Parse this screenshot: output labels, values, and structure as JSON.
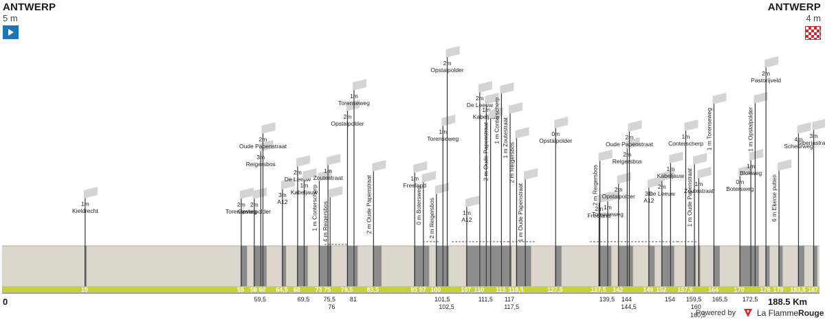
{
  "start": {
    "city": "ANTWERP",
    "altitude": "5 m"
  },
  "finish": {
    "city": "ANTWERP",
    "altitude": "4 m"
  },
  "distance_start_label": "0",
  "distance_end_label": "188.5 Km",
  "footer": {
    "powered_by": "Powered by",
    "brand_prefix": "La Flamme",
    "brand_suffix": "Rouge"
  },
  "colors": {
    "terrain": "#dcd6cc",
    "sector": "#8c8c8c",
    "base_strip": "#c6d13a",
    "marker_card": "#d4d4d4",
    "line": "#333333"
  },
  "chart_data": {
    "type": "area",
    "total_km": 188.5,
    "axis_labels_row1": [
      "19",
      "55",
      "58",
      "60",
      "64,5",
      "68",
      "73",
      "75",
      "79,5",
      "85,5",
      "95",
      "97",
      "100",
      "107",
      "110",
      "115",
      "118,5",
      "127,5",
      "137,5",
      "142",
      "149",
      "152",
      "157,5",
      "164",
      "170",
      "176",
      "179",
      "183,5",
      "187"
    ],
    "axis_labels_row2": [
      "59,5",
      "69,5",
      "75,5",
      "81",
      "101,5",
      "111,5",
      "117",
      "139,5",
      "144",
      "154",
      "159,5",
      "165,5",
      "172,5"
    ],
    "axis_labels_row3": [
      "76",
      "102,5",
      "117,5",
      "144,5",
      "160"
    ],
    "axis_labels_row4": [
      "160,5"
    ],
    "sectors": [
      {
        "km": 19,
        "from": 19,
        "to": 19.5,
        "name": "Kieldrecht",
        "diff": "1m",
        "vertical": false
      },
      {
        "km": 55,
        "from": 55,
        "to": 56.5,
        "name": "Torenseweg",
        "diff": "2m",
        "vertical": false
      },
      {
        "km": 58,
        "from": 58,
        "to": 59.5,
        "name": "Opstalpolder",
        "diff": "2m",
        "vertical": false
      },
      {
        "km": 59.5,
        "from": 59.5,
        "to": 60,
        "name": "Reigersbos",
        "diff": "3m",
        "vertical": false
      },
      {
        "km": 60,
        "from": 60,
        "to": 61,
        "name": "Oude Papenstraat",
        "diff": "2m",
        "vertical": false
      },
      {
        "km": 64.5,
        "from": 64.5,
        "to": 65.5,
        "name": "A12",
        "diff": "3m",
        "vertical": false
      },
      {
        "km": 68,
        "from": 68,
        "to": 69.5,
        "name": "De Leeuw",
        "diff": "2m",
        "vertical": false
      },
      {
        "km": 69.5,
        "from": 69.5,
        "to": 70.5,
        "name": "Kabeljauw",
        "diff": "1m",
        "vertical": false
      },
      {
        "km": 73,
        "from": 73,
        "to": 75,
        "name": "Conterscherp",
        "diff": "1 m",
        "vertical": true
      },
      {
        "km": 75,
        "from": 75,
        "to": 75.5,
        "name": "Zoutestraat",
        "diff": "1m",
        "vertical": false
      },
      {
        "km": 75.5,
        "from": 75.5,
        "to": 76,
        "name": "Reigersbos",
        "diff": "4 m",
        "vertical": true
      },
      {
        "km": 79.5,
        "from": 79.5,
        "to": 81,
        "name": "Opstalpolder",
        "diff": "2m",
        "vertical": false
      },
      {
        "km": 81,
        "from": 81,
        "to": 82,
        "name": "Torenseweg",
        "diff": "1m",
        "vertical": false
      },
      {
        "km": 85.5,
        "from": 85.5,
        "to": 87.5,
        "name": "Oude Papenstraat",
        "diff": "2 m",
        "vertical": true
      },
      {
        "km": 95,
        "from": 95,
        "to": 97,
        "name": "Freeland",
        "diff": "1m",
        "vertical": false
      },
      {
        "km": 97,
        "from": 97,
        "to": 98.5,
        "name": "Botersweg",
        "diff": "0 m",
        "vertical": true
      },
      {
        "km": 100,
        "from": 100,
        "to": 101.5,
        "name": "Reigersbos",
        "diff": "2 m",
        "vertical": true
      },
      {
        "km": 101.5,
        "from": 101.5,
        "to": 102.5,
        "name": "Torenseweg",
        "diff": "1m",
        "vertical": false
      },
      {
        "km": 102.5,
        "from": 102.5,
        "to": 103,
        "name": "Opstalpolder",
        "diff": "2m",
        "vertical": false
      },
      {
        "km": 107,
        "from": 107,
        "to": 110,
        "name": "A12",
        "diff": "1m",
        "vertical": false
      },
      {
        "km": 110,
        "from": 110,
        "to": 111.5,
        "name": "De Leeuw",
        "diff": "2m",
        "vertical": false
      },
      {
        "km": 111.5,
        "from": 111.5,
        "to": 112.5,
        "name": "Kabeljauw",
        "diff": "1m",
        "vertical": false
      },
      {
        "km": 112.5,
        "from": 112.5,
        "to": 115,
        "name": "Oude Papenstraat",
        "diff": "2 m",
        "vertical": true
      },
      {
        "km": 115,
        "from": 115,
        "to": 117,
        "name": "Conterscherp",
        "diff": "1 m",
        "vertical": true
      },
      {
        "km": 117,
        "from": 117,
        "to": 117.5,
        "name": "Zoutestraat",
        "diff": "1 m",
        "vertical": true
      },
      {
        "km": 118.5,
        "from": 118.5,
        "to": 120.5,
        "name": "Reigersbos",
        "diff": "2 m",
        "vertical": true
      },
      {
        "km": 120.5,
        "from": 120.5,
        "to": 122,
        "name": "Oude Papenstraat",
        "diff": "1 m",
        "vertical": true
      },
      {
        "km": 127.5,
        "from": 127.5,
        "to": 129,
        "name": "Opstalpolder",
        "diff": "0m",
        "vertical": false
      },
      {
        "km": 137.5,
        "from": 137.5,
        "to": 139.5,
        "name": "Freeland",
        "diff": "2m",
        "vertical": false
      },
      {
        "km": 137.7,
        "from": 137.7,
        "to": 138,
        "name": "Reigersbos",
        "diff": "2 m",
        "vertical": true
      },
      {
        "km": 139.5,
        "from": 139.5,
        "to": 140.5,
        "name": "Torenseweg",
        "diff": "1m",
        "vertical": false
      },
      {
        "km": 142,
        "from": 142,
        "to": 144,
        "name": "Opstalpolder",
        "diff": "2m",
        "vertical": false
      },
      {
        "km": 144,
        "from": 144,
        "to": 144.5,
        "name": "Reigersbos",
        "diff": "2m",
        "vertical": false
      },
      {
        "km": 144.5,
        "from": 144.5,
        "to": 145.5,
        "name": "Oude Papenstraat",
        "diff": "2m",
        "vertical": false
      },
      {
        "km": 149,
        "from": 149,
        "to": 150.5,
        "name": "A12",
        "diff": "3m",
        "vertical": false
      },
      {
        "km": 152,
        "from": 152,
        "to": 154,
        "name": "De Leeuw",
        "diff": "2m",
        "vertical": false
      },
      {
        "km": 154,
        "from": 154,
        "to": 155,
        "name": "Kabeljauw",
        "diff": "1m",
        "vertical": false
      },
      {
        "km": 157.5,
        "from": 157.5,
        "to": 159.5,
        "name": "Conterscherp",
        "diff": "1m",
        "vertical": false
      },
      {
        "km": 159.5,
        "from": 159.5,
        "to": 160,
        "name": "Oude Papenstraat",
        "diff": "1 m",
        "vertical": true
      },
      {
        "km": 160.5,
        "from": 160.5,
        "to": 161,
        "name": "Zoutestraat",
        "diff": "1m",
        "vertical": false
      },
      {
        "km": 164,
        "from": 164,
        "to": 165.5,
        "name": "Torenseweg",
        "diff": "1 m",
        "vertical": true
      },
      {
        "km": 170,
        "from": 170,
        "to": 172.5,
        "name": "Botersweg",
        "diff": "0m",
        "vertical": false
      },
      {
        "km": 172.5,
        "from": 172.5,
        "to": 173.5,
        "name": "Blokweg",
        "diff": "1m",
        "vertical": false
      },
      {
        "km": 173.5,
        "from": 173.5,
        "to": 174.5,
        "name": "Opstalpolder",
        "diff": "1 m",
        "vertical": true
      },
      {
        "km": 176,
        "from": 176,
        "to": 177,
        "name": "Pastorijveld",
        "diff": "2m",
        "vertical": false
      },
      {
        "km": 179,
        "from": 179,
        "to": 180,
        "name": "Ekerse putten",
        "diff": "6 m",
        "vertical": true
      },
      {
        "km": 183.5,
        "from": 183.5,
        "to": 185,
        "name": "Scheurweg",
        "diff": "4m",
        "vertical": false
      },
      {
        "km": 187,
        "from": 187,
        "to": 188,
        "name": "Siberiastraat",
        "diff": "3m",
        "vertical": false
      }
    ]
  }
}
